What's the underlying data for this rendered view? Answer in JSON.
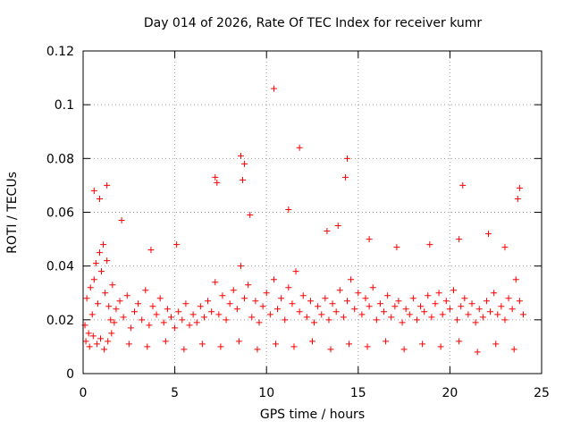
{
  "chart_data": {
    "type": "scatter",
    "title": "Day 014 of 2026, Rate Of TEC Index for receiver kumr",
    "xlabel": "GPS time / hours",
    "ylabel": "ROTI / TECUs",
    "xlim": [
      0,
      25
    ],
    "ylim": [
      0,
      0.12
    ],
    "xticks": [
      0,
      5,
      10,
      15,
      20,
      25
    ],
    "xtick_labels": [
      "0",
      "5",
      "10",
      "15",
      "20",
      "25"
    ],
    "yticks": [
      0,
      0.02,
      0.04,
      0.06,
      0.08,
      0.1,
      0.12
    ],
    "ytick_labels": [
      "0",
      "0.02",
      "0.04",
      "0.06",
      "0.08",
      "0.1",
      "0.12"
    ],
    "grid": true,
    "marker": "+",
    "color": "#ff0000",
    "series": [
      {
        "name": "ROTI",
        "x": [
          0.1,
          0.2,
          0.3,
          0.4,
          0.5,
          0.6,
          0.7,
          0.8,
          0.9,
          1.0,
          1.1,
          1.2,
          1.3,
          1.4,
          1.5,
          1.6,
          1.7,
          1.8,
          2.0,
          2.2,
          2.4,
          2.6,
          2.8,
          3.0,
          3.2,
          3.4,
          3.6,
          3.8,
          4.0,
          4.2,
          4.4,
          4.6,
          4.8,
          5.0,
          5.2,
          5.4,
          5.6,
          5.8,
          6.0,
          6.2,
          6.4,
          6.6,
          6.8,
          7.0,
          7.2,
          7.4,
          7.6,
          7.8,
          8.0,
          8.2,
          8.4,
          8.6,
          8.8,
          9.0,
          9.2,
          9.4,
          9.6,
          9.8,
          10.0,
          10.2,
          10.4,
          10.6,
          10.8,
          11.0,
          11.2,
          11.4,
          11.6,
          11.8,
          12.0,
          12.2,
          12.4,
          12.6,
          12.8,
          13.0,
          13.2,
          13.4,
          13.6,
          13.8,
          14.0,
          14.2,
          14.4,
          14.6,
          14.8,
          15.0,
          15.2,
          15.4,
          15.6,
          15.8,
          16.0,
          16.2,
          16.4,
          16.6,
          16.8,
          17.0,
          17.2,
          17.4,
          17.6,
          17.8,
          18.0,
          18.2,
          18.4,
          18.6,
          18.8,
          19.0,
          19.2,
          19.4,
          19.6,
          19.8,
          20.0,
          20.2,
          20.4,
          20.6,
          20.8,
          21.0,
          21.2,
          21.4,
          21.6,
          21.8,
          22.0,
          22.2,
          22.4,
          22.6,
          22.8,
          23.0,
          23.2,
          23.4,
          23.6,
          23.8,
          24.0,
          0.6,
          0.9,
          1.3,
          2.1,
          3.7,
          5.1,
          7.2,
          7.3,
          8.6,
          8.7,
          8.8,
          9.1,
          10.4,
          11.2,
          11.8,
          13.3,
          13.9,
          14.3,
          14.4,
          15.6,
          17.1,
          18.9,
          20.5,
          20.7,
          22.1,
          23.0,
          23.7,
          23.8,
          0.15,
          0.35,
          0.55,
          0.75,
          0.95,
          1.15,
          1.35,
          1.55,
          2.5,
          3.5,
          4.5,
          5.5,
          6.5,
          7.5,
          8.5,
          9.5,
          10.5,
          11.5,
          12.5,
          13.5,
          14.5,
          15.5,
          16.5,
          17.5,
          18.5,
          19.5,
          20.5,
          21.5,
          22.5,
          23.5
        ],
        "y": [
          0.018,
          0.028,
          0.015,
          0.032,
          0.022,
          0.035,
          0.041,
          0.026,
          0.045,
          0.038,
          0.048,
          0.03,
          0.042,
          0.025,
          0.02,
          0.033,
          0.019,
          0.024,
          0.027,
          0.021,
          0.029,
          0.017,
          0.023,
          0.026,
          0.02,
          0.031,
          0.018,
          0.025,
          0.022,
          0.028,
          0.019,
          0.024,
          0.021,
          0.017,
          0.023,
          0.02,
          0.026,
          0.018,
          0.022,
          0.019,
          0.025,
          0.021,
          0.027,
          0.023,
          0.034,
          0.022,
          0.029,
          0.02,
          0.026,
          0.031,
          0.024,
          0.04,
          0.028,
          0.033,
          0.021,
          0.027,
          0.019,
          0.025,
          0.03,
          0.022,
          0.035,
          0.024,
          0.028,
          0.02,
          0.032,
          0.026,
          0.038,
          0.023,
          0.029,
          0.021,
          0.027,
          0.019,
          0.025,
          0.022,
          0.028,
          0.02,
          0.026,
          0.023,
          0.031,
          0.021,
          0.027,
          0.035,
          0.024,
          0.03,
          0.022,
          0.028,
          0.025,
          0.032,
          0.02,
          0.026,
          0.023,
          0.029,
          0.021,
          0.025,
          0.027,
          0.019,
          0.024,
          0.022,
          0.028,
          0.02,
          0.025,
          0.023,
          0.029,
          0.021,
          0.026,
          0.03,
          0.022,
          0.027,
          0.024,
          0.031,
          0.02,
          0.025,
          0.028,
          0.022,
          0.026,
          0.019,
          0.024,
          0.021,
          0.027,
          0.023,
          0.03,
          0.022,
          0.025,
          0.02,
          0.028,
          0.024,
          0.035,
          0.027,
          0.022,
          0.068,
          0.065,
          0.07,
          0.057,
          0.046,
          0.048,
          0.073,
          0.071,
          0.081,
          0.072,
          0.078,
          0.059,
          0.106,
          0.061,
          0.084,
          0.053,
          0.055,
          0.073,
          0.08,
          0.05,
          0.047,
          0.048,
          0.05,
          0.07,
          0.052,
          0.047,
          0.065,
          0.069,
          0.012,
          0.01,
          0.014,
          0.011,
          0.013,
          0.009,
          0.012,
          0.015,
          0.011,
          0.01,
          0.012,
          0.009,
          0.011,
          0.01,
          0.012,
          0.009,
          0.011,
          0.01,
          0.012,
          0.009,
          0.011,
          0.01,
          0.012,
          0.009,
          0.011,
          0.01,
          0.012,
          0.008,
          0.011,
          0.009
        ]
      }
    ]
  }
}
